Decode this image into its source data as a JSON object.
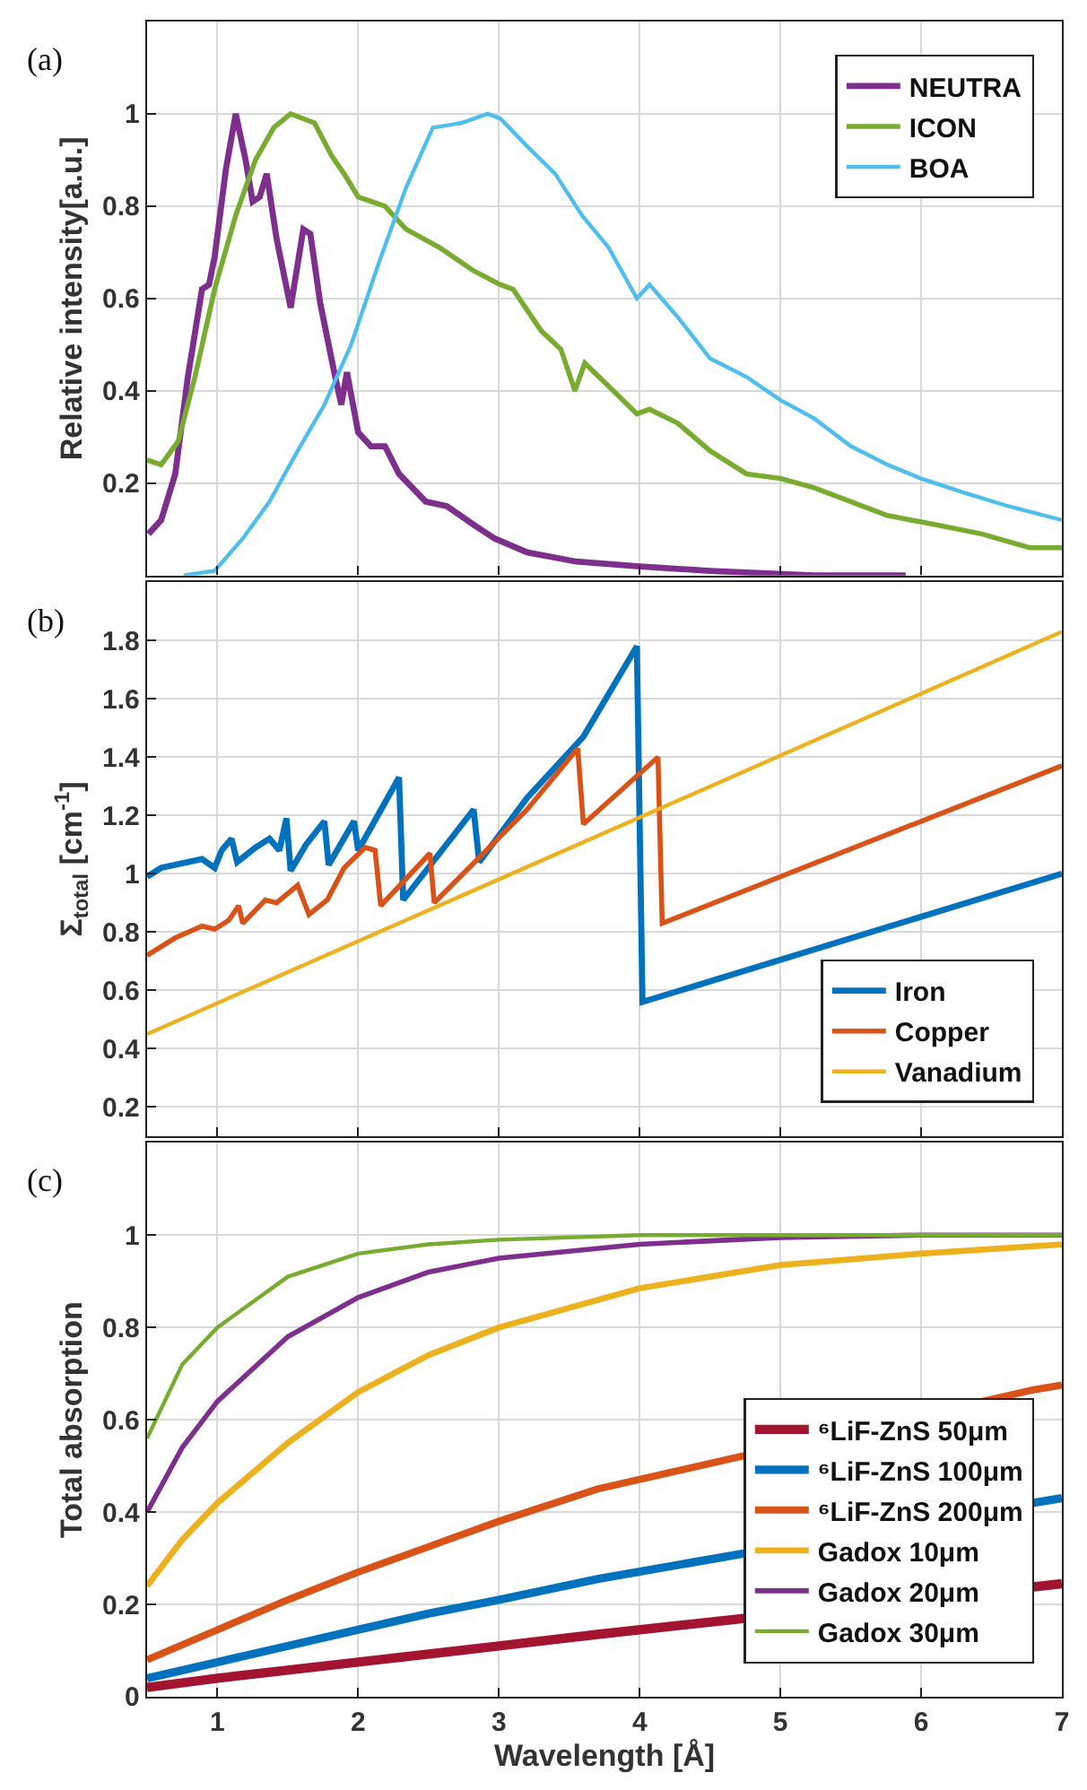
{
  "chart_data": [
    {
      "type": "line",
      "ylabel": "Relative intensity[a.u.]",
      "annotations": [
        "(a)"
      ],
      "xlim": [
        0.5,
        7
      ],
      "xticks": [
        1,
        2,
        3,
        4,
        5,
        6,
        7
      ],
      "ylim": [
        0,
        1.2
      ],
      "yticks": [
        0.2,
        0.4,
        0.6,
        0.8,
        1
      ],
      "grid": true,
      "legend": "top right",
      "tick_labels": "y",
      "series": [
        {
          "name": "NEUTRA",
          "color": "#7e2f8e",
          "x": [
            0.51,
            0.6,
            0.7,
            0.79,
            0.89,
            0.94,
            0.98,
            1.06,
            1.13,
            1.2,
            1.25,
            1.3,
            1.35,
            1.42,
            1.52,
            1.61,
            1.66,
            1.73,
            1.83,
            1.88,
            1.92,
            2.0,
            2.09,
            2.19,
            2.29,
            2.48,
            2.63,
            2.82,
            2.97,
            3.2,
            3.55,
            3.98,
            4.5,
            5.24,
            5.89
          ],
          "values": [
            0.09,
            0.12,
            0.22,
            0.43,
            0.62,
            0.63,
            0.69,
            0.88,
            1.0,
            0.9,
            0.81,
            0.82,
            0.87,
            0.73,
            0.58,
            0.75,
            0.74,
            0.59,
            0.44,
            0.37,
            0.44,
            0.31,
            0.28,
            0.28,
            0.22,
            0.16,
            0.15,
            0.11,
            0.08,
            0.05,
            0.03,
            0.02,
            0.01,
            0.0,
            0.0
          ]
        },
        {
          "name": "ICON",
          "color": "#77ac30",
          "x": [
            0.5,
            0.6,
            0.72,
            0.84,
            0.98,
            1.13,
            1.27,
            1.4,
            1.52,
            1.69,
            1.81,
            1.9,
            2.0,
            2.19,
            2.34,
            2.58,
            2.82,
            3.01,
            3.1,
            3.3,
            3.44,
            3.54,
            3.61,
            3.78,
            3.98,
            4.07,
            4.27,
            4.5,
            4.76,
            5.0,
            5.24,
            5.5,
            5.76,
            6.1,
            6.43,
            6.77,
            7.0
          ],
          "values": [
            0.25,
            0.24,
            0.29,
            0.43,
            0.62,
            0.78,
            0.9,
            0.97,
            1.0,
            0.98,
            0.91,
            0.87,
            0.82,
            0.8,
            0.75,
            0.71,
            0.66,
            0.63,
            0.62,
            0.53,
            0.49,
            0.4,
            0.46,
            0.41,
            0.35,
            0.36,
            0.33,
            0.27,
            0.22,
            0.21,
            0.19,
            0.16,
            0.13,
            0.11,
            0.09,
            0.06,
            0.06
          ]
        },
        {
          "name": "BOA",
          "color": "#4dbeee",
          "x": [
            0.76,
            0.98,
            1.18,
            1.37,
            1.57,
            1.76,
            1.95,
            2.15,
            2.34,
            2.53,
            2.73,
            2.92,
            3.01,
            3.2,
            3.4,
            3.59,
            3.78,
            3.98,
            4.07,
            4.27,
            4.5,
            4.76,
            5.0,
            5.24,
            5.5,
            5.76,
            6.0,
            6.3,
            6.62,
            7.0
          ],
          "values": [
            0.0,
            0.01,
            0.08,
            0.16,
            0.27,
            0.37,
            0.5,
            0.68,
            0.84,
            0.97,
            0.98,
            1.0,
            0.99,
            0.93,
            0.87,
            0.78,
            0.71,
            0.6,
            0.63,
            0.56,
            0.47,
            0.43,
            0.38,
            0.34,
            0.28,
            0.24,
            0.21,
            0.18,
            0.15,
            0.12
          ]
        }
      ]
    },
    {
      "type": "line",
      "ylabel": "Σ$_{total}$ [cm$^{-1}$]",
      "annotations": [
        "(b)"
      ],
      "xlim": [
        0.5,
        7
      ],
      "xticks": [
        1,
        2,
        3,
        4,
        5,
        6,
        7
      ],
      "ylim": [
        0.1,
        2.0
      ],
      "yticks": [
        0.2,
        0.4,
        0.6,
        0.8,
        1,
        1.2,
        1.4,
        1.6,
        1.8
      ],
      "grid": true,
      "legend": "bottom right",
      "tick_labels": "y",
      "series": [
        {
          "name": "Iron",
          "color": "#0072bd",
          "x": [
            0.5,
            0.6,
            0.89,
            0.98,
            1.03,
            1.1,
            1.14,
            1.27,
            1.37,
            1.44,
            1.49,
            1.52,
            1.63,
            1.76,
            1.79,
            1.97,
            2.0,
            2.29,
            2.32,
            2.82,
            2.86,
            3.2,
            3.6,
            3.98,
            4.02,
            7.0
          ],
          "values": [
            0.99,
            1.02,
            1.05,
            1.02,
            1.08,
            1.12,
            1.04,
            1.09,
            1.12,
            1.08,
            1.19,
            1.01,
            1.1,
            1.18,
            1.03,
            1.18,
            1.08,
            1.33,
            0.91,
            1.22,
            1.04,
            1.26,
            1.47,
            1.78,
            0.56,
            1.0
          ]
        },
        {
          "name": "Copper",
          "color": "#d95319",
          "x": [
            0.5,
            0.7,
            0.89,
            0.98,
            1.08,
            1.15,
            1.18,
            1.34,
            1.42,
            1.57,
            1.65,
            1.78,
            1.9,
            2.05,
            2.12,
            2.16,
            2.51,
            2.54,
            3.2,
            3.56,
            3.6,
            4.13,
            4.16,
            7.0
          ],
          "values": [
            0.72,
            0.78,
            0.82,
            0.81,
            0.84,
            0.89,
            0.83,
            0.91,
            0.9,
            0.96,
            0.86,
            0.91,
            1.02,
            1.09,
            1.08,
            0.89,
            1.07,
            0.9,
            1.22,
            1.43,
            1.17,
            1.4,
            0.83,
            1.37
          ]
        },
        {
          "name": "Vanadium",
          "color": "#edb120",
          "x": [
            0.5,
            7.0
          ],
          "values": [
            0.45,
            1.83
          ]
        }
      ]
    },
    {
      "type": "line",
      "xlabel": "Wavelength [Å]",
      "ylabel": "Total absorption",
      "annotations": [
        "(c)"
      ],
      "xlim": [
        0.5,
        7
      ],
      "xticks": [
        1,
        2,
        3,
        4,
        5,
        6,
        7
      ],
      "ylim": [
        0,
        1.2
      ],
      "yticks": [
        0,
        0.2,
        0.4,
        0.6,
        0.8,
        1
      ],
      "grid": true,
      "legend": "bottom right",
      "series": [
        {
          "name": "⁶LiF-ZnS 50μm",
          "color": "#a2142f",
          "x": [
            0.5,
            1,
            2,
            3,
            3.7,
            6.8,
            7
          ],
          "values": [
            0.02,
            0.04,
            0.075,
            0.11,
            0.135,
            0.238,
            0.245
          ]
        },
        {
          "name": "⁶LiF-ZnS 100μm",
          "color": "#0072bd",
          "x": [
            0.5,
            1,
            1.5,
            2,
            2.5,
            3,
            3.7,
            6.8,
            7
          ],
          "values": [
            0.04,
            0.075,
            0.11,
            0.145,
            0.18,
            0.21,
            0.255,
            0.42,
            0.43
          ]
        },
        {
          "name": "⁶LiF-ZnS 200μm",
          "color": "#d95319",
          "x": [
            0.5,
            1,
            1.5,
            2,
            2.5,
            3,
            3.7,
            6.8,
            7
          ],
          "values": [
            0.08,
            0.145,
            0.21,
            0.27,
            0.325,
            0.38,
            0.45,
            0.665,
            0.675
          ]
        },
        {
          "name": "Gadox 10μm",
          "color": "#edb120",
          "x": [
            0.5,
            0.75,
            1,
            1.5,
            2,
            2.5,
            3,
            4,
            5,
            6,
            7
          ],
          "values": [
            0.24,
            0.34,
            0.42,
            0.55,
            0.66,
            0.74,
            0.8,
            0.885,
            0.935,
            0.96,
            0.98
          ]
        },
        {
          "name": "Gadox 20μm",
          "color": "#7e2f8e",
          "x": [
            0.5,
            0.75,
            1,
            1.5,
            2,
            2.5,
            3,
            4,
            5,
            6,
            7
          ],
          "values": [
            0.4,
            0.54,
            0.64,
            0.78,
            0.865,
            0.92,
            0.95,
            0.98,
            0.995,
            1.0,
            1.0
          ]
        },
        {
          "name": "Gadox 30μm",
          "color": "#77ac30",
          "x": [
            0.5,
            0.75,
            1,
            1.5,
            2,
            2.5,
            3,
            4,
            7
          ],
          "values": [
            0.56,
            0.72,
            0.8,
            0.91,
            0.96,
            0.98,
            0.99,
            1.0,
            1.0
          ]
        }
      ]
    }
  ]
}
